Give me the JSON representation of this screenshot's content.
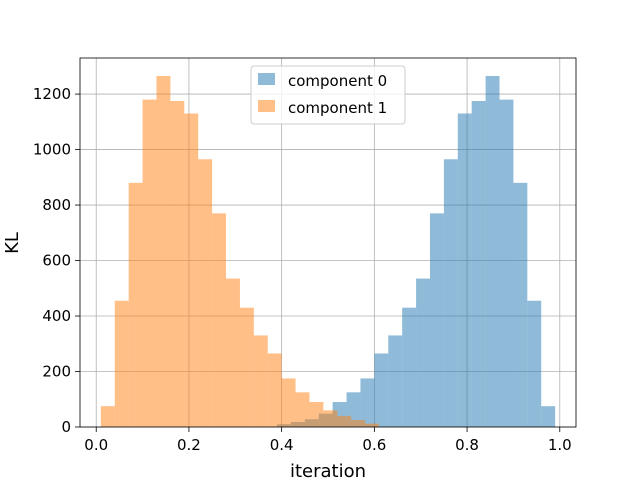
{
  "chart_data": {
    "type": "histogram",
    "xlabel": "iteration",
    "ylabel": "KL",
    "xlim": [
      -0.035,
      1.035
    ],
    "ylim": [
      0,
      1330
    ],
    "xticks": [
      0.0,
      0.2,
      0.4,
      0.6,
      0.8,
      1.0
    ],
    "xtick_labels": [
      "0.0",
      "0.2",
      "0.4",
      "0.6",
      "0.8",
      "1.0"
    ],
    "yticks": [
      0,
      200,
      400,
      600,
      800,
      1000,
      1200
    ],
    "ytick_labels": [
      "0",
      "200",
      "400",
      "600",
      "800",
      "1000",
      "1200"
    ],
    "grid": true,
    "legend_position": "upper center",
    "series": [
      {
        "name": "component 0",
        "color": "#1f77b4",
        "opacity": 0.5,
        "bins": [
          {
            "x0": 0.39,
            "x1": 0.42,
            "count": 10
          },
          {
            "x0": 0.42,
            "x1": 0.45,
            "count": 18
          },
          {
            "x0": 0.45,
            "x1": 0.48,
            "count": 28
          },
          {
            "x0": 0.48,
            "x1": 0.51,
            "count": 48
          },
          {
            "x0": 0.51,
            "x1": 0.54,
            "count": 90
          },
          {
            "x0": 0.54,
            "x1": 0.57,
            "count": 125
          },
          {
            "x0": 0.57,
            "x1": 0.6,
            "count": 175
          },
          {
            "x0": 0.6,
            "x1": 0.63,
            "count": 265
          },
          {
            "x0": 0.63,
            "x1": 0.66,
            "count": 330
          },
          {
            "x0": 0.66,
            "x1": 0.69,
            "count": 430
          },
          {
            "x0": 0.69,
            "x1": 0.72,
            "count": 535
          },
          {
            "x0": 0.72,
            "x1": 0.75,
            "count": 770
          },
          {
            "x0": 0.75,
            "x1": 0.78,
            "count": 965
          },
          {
            "x0": 0.78,
            "x1": 0.81,
            "count": 1130
          },
          {
            "x0": 0.81,
            "x1": 0.84,
            "count": 1175
          },
          {
            "x0": 0.84,
            "x1": 0.87,
            "count": 1265
          },
          {
            "x0": 0.87,
            "x1": 0.9,
            "count": 1180
          },
          {
            "x0": 0.9,
            "x1": 0.93,
            "count": 880
          },
          {
            "x0": 0.93,
            "x1": 0.96,
            "count": 455
          },
          {
            "x0": 0.96,
            "x1": 0.99,
            "count": 75
          }
        ]
      },
      {
        "name": "component 1",
        "color": "#ff7f0e",
        "opacity": 0.5,
        "bins": [
          {
            "x0": 0.01,
            "x1": 0.04,
            "count": 75
          },
          {
            "x0": 0.04,
            "x1": 0.07,
            "count": 455
          },
          {
            "x0": 0.07,
            "x1": 0.1,
            "count": 880
          },
          {
            "x0": 0.1,
            "x1": 0.13,
            "count": 1180
          },
          {
            "x0": 0.13,
            "x1": 0.16,
            "count": 1265
          },
          {
            "x0": 0.16,
            "x1": 0.19,
            "count": 1175
          },
          {
            "x0": 0.19,
            "x1": 0.22,
            "count": 1130
          },
          {
            "x0": 0.22,
            "x1": 0.25,
            "count": 965
          },
          {
            "x0": 0.25,
            "x1": 0.28,
            "count": 770
          },
          {
            "x0": 0.28,
            "x1": 0.31,
            "count": 535
          },
          {
            "x0": 0.31,
            "x1": 0.34,
            "count": 430
          },
          {
            "x0": 0.34,
            "x1": 0.37,
            "count": 330
          },
          {
            "x0": 0.37,
            "x1": 0.4,
            "count": 265
          },
          {
            "x0": 0.4,
            "x1": 0.43,
            "count": 175
          },
          {
            "x0": 0.43,
            "x1": 0.46,
            "count": 125
          },
          {
            "x0": 0.46,
            "x1": 0.49,
            "count": 90
          },
          {
            "x0": 0.49,
            "x1": 0.52,
            "count": 60
          },
          {
            "x0": 0.52,
            "x1": 0.55,
            "count": 40
          },
          {
            "x0": 0.55,
            "x1": 0.58,
            "count": 25
          },
          {
            "x0": 0.58,
            "x1": 0.61,
            "count": 12
          }
        ]
      }
    ]
  }
}
